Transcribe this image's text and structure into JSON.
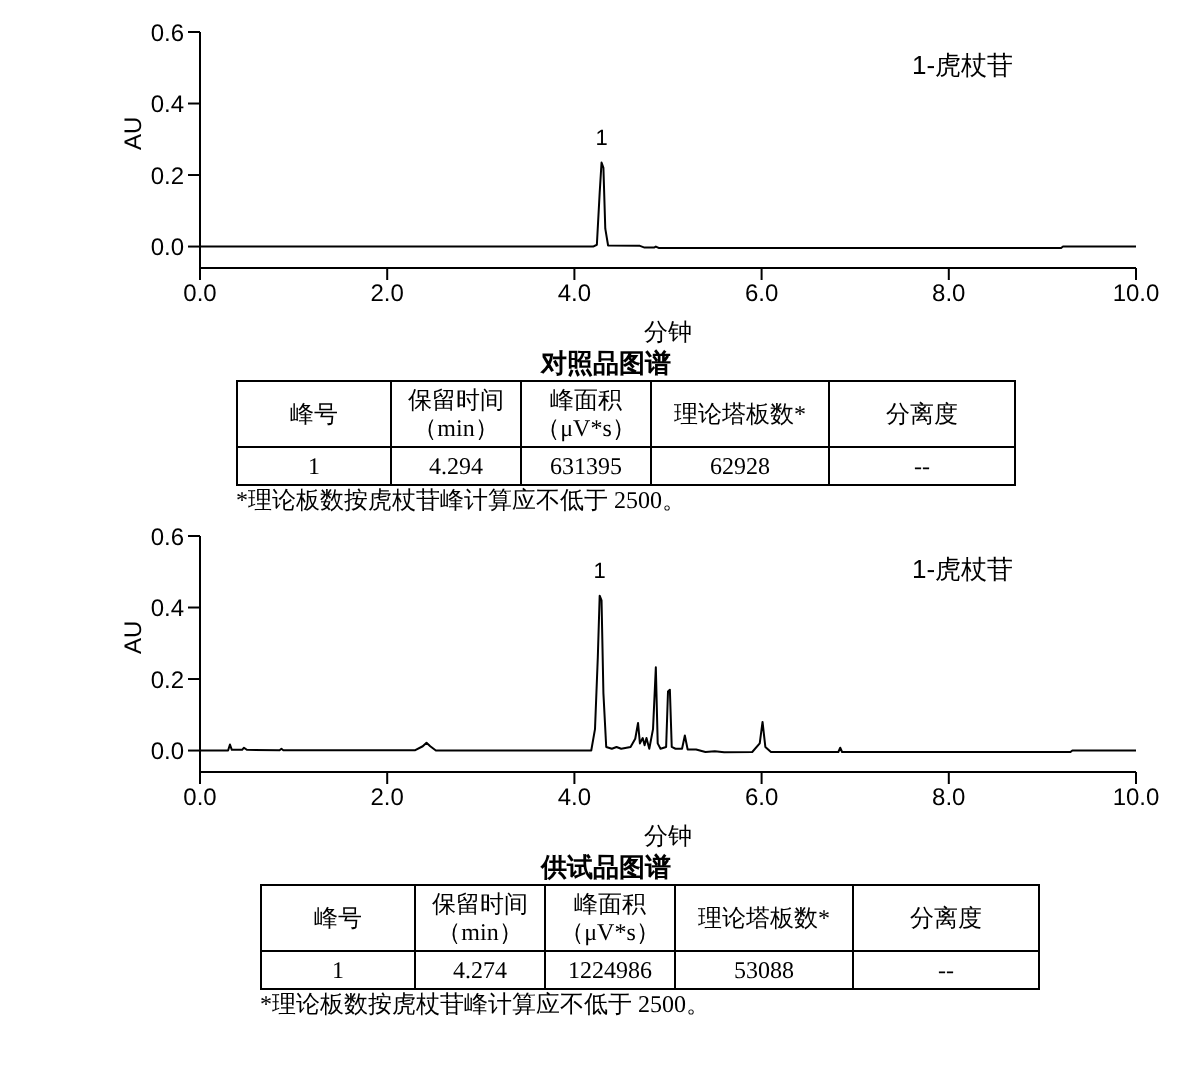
{
  "chart_data": [
    {
      "type": "line",
      "title": "对照品图谱",
      "xlabel": "分钟",
      "ylabel": "AU",
      "xlim": [
        0,
        10
      ],
      "ylim": [
        -0.06,
        0.6
      ],
      "xticks": [
        {
          "value": 0,
          "label": "0.0"
        },
        {
          "value": 2,
          "label": "2.0"
        },
        {
          "value": 4,
          "label": "4.0"
        },
        {
          "value": 6,
          "label": "6.0"
        },
        {
          "value": 8,
          "label": "8.0"
        },
        {
          "value": 10,
          "label": "10.0"
        }
      ],
      "yticks": [
        {
          "value": 0,
          "label": "0.0"
        },
        {
          "value": 0.2,
          "label": "0.2"
        },
        {
          "value": 0.4,
          "label": "0.4"
        },
        {
          "value": 0.6,
          "label": "0.6"
        }
      ],
      "grid": false,
      "legend": false,
      "marker": "none",
      "line_style": "solid",
      "series": [
        {
          "color": "#000000",
          "x": [
            0,
            4.2,
            4.24,
            4.27,
            4.29,
            4.31,
            4.33,
            4.36,
            4.7,
            4.75,
            4.85,
            4.87,
            4.9,
            9.2,
            9.22,
            10
          ],
          "values": [
            0,
            0,
            0.005,
            0.15,
            0.235,
            0.22,
            0.05,
            0.003,
            0.002,
            -0.003,
            -0.003,
            0,
            -0.004,
            -0.004,
            0,
            0
          ]
        }
      ],
      "annotations": [
        "1-虎杖苷",
        {
          "text": "1",
          "x": 4.29,
          "y": 0.235
        },
        "峰号",
        "保留时间（min）",
        "峰面积（μV*s）",
        "理论塔板数*",
        "分离度",
        "1",
        "4.294",
        "631395",
        "62928",
        "--",
        "*理论板数按虎杖苷峰计算应不低于 2500。"
      ]
    },
    {
      "type": "line",
      "title": "供试品图谱",
      "xlabel": "分钟",
      "ylabel": "AU",
      "xlim": [
        0,
        10
      ],
      "ylim": [
        -0.06,
        0.6
      ],
      "xticks": [
        {
          "value": 0,
          "label": "0.0"
        },
        {
          "value": 2,
          "label": "2.0"
        },
        {
          "value": 4,
          "label": "4.0"
        },
        {
          "value": 6,
          "label": "6.0"
        },
        {
          "value": 8,
          "label": "8.0"
        },
        {
          "value": 10,
          "label": "10.0"
        }
      ],
      "yticks": [
        {
          "value": 0,
          "label": "0.0"
        },
        {
          "value": 0.2,
          "label": "0.2"
        },
        {
          "value": 0.4,
          "label": "0.4"
        },
        {
          "value": 0.6,
          "label": "0.6"
        }
      ],
      "grid": false,
      "legend": false,
      "marker": "none",
      "line_style": "solid",
      "series": [
        {
          "color": "#000000",
          "x": [
            0,
            0.3,
            0.32,
            0.34,
            0.45,
            0.47,
            0.5,
            0.85,
            0.87,
            0.89,
            2.3,
            2.38,
            2.42,
            2.46,
            2.52,
            4.18,
            4.22,
            4.25,
            4.27,
            4.29,
            4.31,
            4.34,
            4.4,
            4.45,
            4.5,
            4.6,
            4.65,
            4.68,
            4.7,
            4.73,
            4.75,
            4.77,
            4.8,
            4.84,
            4.87,
            4.89,
            4.92,
            4.98,
            5.0,
            5.02,
            5.04,
            5.08,
            5.15,
            5.18,
            5.21,
            5.3,
            5.4,
            5.5,
            5.6,
            5.9,
            5.98,
            6.01,
            6.04,
            6.1,
            6.82,
            6.84,
            6.86,
            9.3,
            9.32,
            10
          ],
          "values": [
            0,
            0,
            0.017,
            0.002,
            0.002,
            0.008,
            0.002,
            0.001,
            0.005,
            0.001,
            0.001,
            0.012,
            0.022,
            0.012,
            0,
            0,
            0.06,
            0.26,
            0.433,
            0.42,
            0.16,
            0.01,
            0.005,
            0.01,
            0.005,
            0.01,
            0.033,
            0.077,
            0.02,
            0.035,
            0.015,
            0.035,
            0.005,
            0.06,
            0.233,
            0.02,
            0.005,
            0.01,
            0.165,
            0.17,
            0.01,
            0.005,
            0.005,
            0.042,
            0.003,
            0.003,
            -0.004,
            -0.002,
            -0.005,
            -0.004,
            0.02,
            0.08,
            0.01,
            -0.004,
            -0.004,
            0.008,
            -0.004,
            -0.004,
            0,
            0
          ]
        }
      ],
      "annotations": [
        "1-虎杖苷",
        {
          "text": "1",
          "x": 4.27,
          "y": 0.433
        },
        "峰号",
        "保留时间（min）",
        "峰面积（μV*s）",
        "理论塔板数*",
        "分离度",
        "1",
        "4.274",
        "1224986",
        "53088",
        "--",
        "*理论板数按虎杖苷峰计算应不低于 2500。"
      ]
    }
  ]
}
